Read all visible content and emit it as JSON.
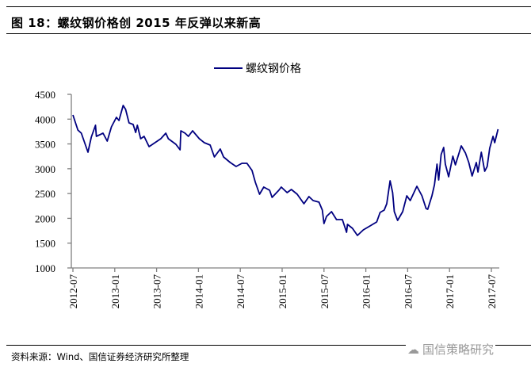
{
  "title": "图 18：螺纹钢价格创 2015 年反弹以来新高",
  "source": "资料来源：Wind、国信证券经济研究所整理",
  "watermark": "国信策略研究",
  "colors": {
    "line": "#000080",
    "axis": "#808080"
  },
  "chart_data": {
    "type": "line",
    "title": "图 18：螺纹钢价格创 2015 年反弹以来新高",
    "xlabel": "",
    "ylabel": "",
    "ylim": [
      1000,
      4500
    ],
    "xlim": [
      2012.48,
      2017.6
    ],
    "y_ticks": [
      1000,
      1500,
      2000,
      2500,
      3000,
      3500,
      4000,
      4500
    ],
    "y_tick_labels": [
      "1000",
      "1500",
      "2000",
      "2500",
      "3000",
      "3500",
      "4000",
      "4500"
    ],
    "x_ticks": [
      2012.5,
      2013.0,
      2013.5,
      2014.0,
      2014.5,
      2015.0,
      2015.5,
      2016.0,
      2016.5,
      2017.0,
      2017.5
    ],
    "x_tick_labels": [
      "2012-07",
      "2013-01",
      "2013-07",
      "2014-01",
      "2014-07",
      "2015-01",
      "2015-07",
      "2016-01",
      "2016-07",
      "2017-01",
      "2017-07"
    ],
    "grid": false,
    "legend_position": "top-center",
    "series": [
      {
        "name": "螺纹钢价格",
        "x": [
          2012.5,
          2012.56,
          2012.6,
          2012.68,
          2012.72,
          2012.77,
          2012.78,
          2012.86,
          2012.91,
          2012.96,
          2013.02,
          2013.05,
          2013.1,
          2013.13,
          2013.17,
          2013.22,
          2013.25,
          2013.27,
          2013.31,
          2013.35,
          2013.41,
          2013.48,
          2013.55,
          2013.61,
          2013.64,
          2013.73,
          2013.78,
          2013.79,
          2013.84,
          2013.88,
          2013.93,
          2014.01,
          2014.07,
          2014.14,
          2014.19,
          2014.26,
          2014.3,
          2014.38,
          2014.45,
          2014.52,
          2014.58,
          2014.64,
          2014.68,
          2014.73,
          2014.78,
          2014.85,
          2014.88,
          2014.96,
          2014.99,
          2015.06,
          2015.11,
          2015.18,
          2015.26,
          2015.32,
          2015.37,
          2015.44,
          2015.48,
          2015.5,
          2015.53,
          2015.59,
          2015.65,
          2015.72,
          2015.77,
          2015.78,
          2015.84,
          2015.9,
          2015.97,
          2016.05,
          2016.13,
          2016.17,
          2016.22,
          2016.25,
          2016.29,
          2016.32,
          2016.34,
          2016.38,
          2016.44,
          2016.49,
          2016.53,
          2016.61,
          2016.67,
          2016.72,
          2016.74,
          2016.79,
          2016.82,
          2016.85,
          2016.87,
          2016.9,
          2016.93,
          2016.95,
          2016.99,
          2017.04,
          2017.07,
          2017.14,
          2017.19,
          2017.23,
          2017.27,
          2017.32,
          2017.34,
          2017.38,
          2017.42,
          2017.45,
          2017.48,
          2017.52,
          2017.54,
          2017.58
        ],
        "values": [
          4084,
          3780,
          3717,
          3333,
          3637,
          3876,
          3653,
          3717,
          3557,
          3844,
          4036,
          3972,
          4276,
          4196,
          3924,
          3892,
          3732,
          3876,
          3605,
          3653,
          3445,
          3525,
          3605,
          3717,
          3605,
          3493,
          3381,
          3765,
          3717,
          3653,
          3765,
          3605,
          3525,
          3477,
          3237,
          3397,
          3237,
          3125,
          3045,
          3109,
          3109,
          2965,
          2726,
          2486,
          2630,
          2566,
          2422,
          2566,
          2630,
          2518,
          2582,
          2486,
          2294,
          2438,
          2358,
          2326,
          2166,
          1895,
          2039,
          2135,
          1975,
          1975,
          1719,
          1879,
          1799,
          1655,
          1767,
          1847,
          1927,
          2119,
          2166,
          2294,
          2758,
          2518,
          2135,
          1959,
          2135,
          2454,
          2358,
          2646,
          2454,
          2198,
          2182,
          2454,
          2678,
          3093,
          2774,
          3285,
          3429,
          3093,
          2838,
          3253,
          3077,
          3461,
          3317,
          3125,
          2854,
          3125,
          2934,
          3333,
          2950,
          3045,
          3413,
          3653,
          3525,
          3797
        ]
      }
    ]
  }
}
